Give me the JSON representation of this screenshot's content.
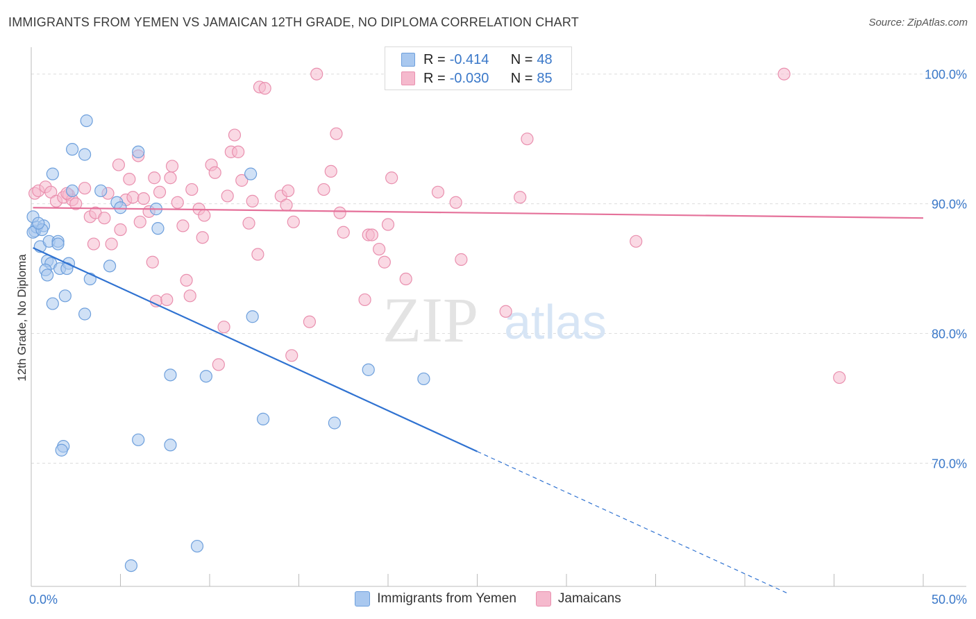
{
  "header": {
    "title": "IMMIGRANTS FROM YEMEN VS JAMAICAN 12TH GRADE, NO DIPLOMA CORRELATION CHART",
    "source": "Source: ZipAtlas.com"
  },
  "watermark": {
    "zip": "ZIP",
    "atlas": "atlas"
  },
  "stats": [
    {
      "r_label": "R =",
      "r": "-0.414",
      "n_label": "N =",
      "n": "48"
    },
    {
      "r_label": "R =",
      "r": "-0.030",
      "n_label": "N =",
      "n": "85"
    }
  ],
  "colors": {
    "blue_fill": "#a9c8ef",
    "blue_stroke": "#6d9fdc",
    "blue_line": "#2f72d1",
    "pink_fill": "#f5b9cd",
    "pink_stroke": "#e98fae",
    "pink_line": "#e5719a",
    "tick_text": "#3a78c9",
    "grid": "#dddddd"
  },
  "chart_data": {
    "type": "scatter",
    "title": "IMMIGRANTS FROM YEMEN VS JAMAICAN 12TH GRADE, NO DIPLOMA CORRELATION CHART",
    "xlabel": "",
    "ylabel": "12th Grade, No Diploma",
    "xlim": [
      0,
      50
    ],
    "ylim": [
      60.5,
      102.5
    ],
    "x_tick_labels": [
      {
        "value": 0,
        "label": "0.0%"
      },
      {
        "value": 50,
        "label": "50.0%"
      }
    ],
    "y_tick_labels": [
      {
        "value": 100,
        "label": "100.0%"
      },
      {
        "value": 90,
        "label": "90.0%"
      },
      {
        "value": 80,
        "label": "80.0%"
      },
      {
        "value": 70,
        "label": "70.0%"
      }
    ],
    "x_minor_ticks": [
      5,
      10,
      15,
      20,
      25,
      30,
      35,
      40,
      45,
      50
    ],
    "y_grid": [
      100,
      90,
      80,
      70
    ],
    "grid": true,
    "legend_position": "bottom-center",
    "series": [
      {
        "name": "Immigrants from Yemen",
        "color": "blue",
        "r": -0.414,
        "n": 48,
        "trend": {
          "x0": 0.1,
          "y0": 86.6,
          "x1": 25.0,
          "y1": 70.9,
          "dash_to_x": 42.5,
          "dash_to_y": 59.9
        },
        "points": [
          [
            0.1,
            89.0
          ],
          [
            0.2,
            87.9
          ],
          [
            0.3,
            88.2
          ],
          [
            0.7,
            88.3
          ],
          [
            0.5,
            86.7
          ],
          [
            1.0,
            87.1
          ],
          [
            1.5,
            87.1
          ],
          [
            0.9,
            85.6
          ],
          [
            1.1,
            85.4
          ],
          [
            0.8,
            84.9
          ],
          [
            1.6,
            85.0
          ],
          [
            2.1,
            85.4
          ],
          [
            0.9,
            84.5
          ],
          [
            1.2,
            82.3
          ],
          [
            1.9,
            82.9
          ],
          [
            1.2,
            92.3
          ],
          [
            2.3,
            94.2
          ],
          [
            3.0,
            93.8
          ],
          [
            3.1,
            96.4
          ],
          [
            2.3,
            91.0
          ],
          [
            3.9,
            91.0
          ],
          [
            4.8,
            90.1
          ],
          [
            5.0,
            89.7
          ],
          [
            7.0,
            89.6
          ],
          [
            7.1,
            88.1
          ],
          [
            6.0,
            94.0
          ],
          [
            4.4,
            85.2
          ],
          [
            3.3,
            84.2
          ],
          [
            3.0,
            81.5
          ],
          [
            12.3,
            92.3
          ],
          [
            12.4,
            81.3
          ],
          [
            7.8,
            76.8
          ],
          [
            9.8,
            76.7
          ],
          [
            18.9,
            77.2
          ],
          [
            22.0,
            76.5
          ],
          [
            13.0,
            73.4
          ],
          [
            17.0,
            73.1
          ],
          [
            6.0,
            71.8
          ],
          [
            7.8,
            71.4
          ],
          [
            1.8,
            71.3
          ],
          [
            1.7,
            71.0
          ],
          [
            9.3,
            63.6
          ],
          [
            5.6,
            62.1
          ],
          [
            0.1,
            87.8
          ],
          [
            1.5,
            86.9
          ],
          [
            2.0,
            85.0
          ],
          [
            0.6,
            88.0
          ],
          [
            0.4,
            88.5
          ]
        ]
      },
      {
        "name": "Jamaicans",
        "color": "pink",
        "r": -0.03,
        "n": 85,
        "trend": {
          "x0": 0.1,
          "y0": 89.7,
          "x1": 50.0,
          "y1": 88.9
        },
        "points": [
          [
            0.2,
            90.8
          ],
          [
            0.4,
            91.0
          ],
          [
            0.8,
            91.3
          ],
          [
            1.1,
            90.9
          ],
          [
            1.4,
            90.2
          ],
          [
            1.8,
            90.5
          ],
          [
            2.1,
            90.7
          ],
          [
            2.3,
            90.3
          ],
          [
            2.5,
            90.0
          ],
          [
            3.0,
            91.2
          ],
          [
            3.3,
            89.0
          ],
          [
            3.6,
            89.3
          ],
          [
            4.1,
            88.9
          ],
          [
            4.3,
            90.8
          ],
          [
            4.5,
            86.9
          ],
          [
            4.9,
            93.0
          ],
          [
            5.3,
            90.3
          ],
          [
            5.5,
            91.9
          ],
          [
            5.7,
            90.5
          ],
          [
            6.0,
            93.7
          ],
          [
            6.1,
            88.6
          ],
          [
            6.3,
            90.4
          ],
          [
            6.6,
            89.4
          ],
          [
            6.8,
            85.5
          ],
          [
            7.0,
            82.5
          ],
          [
            7.2,
            90.9
          ],
          [
            7.6,
            82.6
          ],
          [
            7.8,
            92.0
          ],
          [
            7.9,
            92.9
          ],
          [
            8.2,
            90.1
          ],
          [
            8.5,
            88.3
          ],
          [
            8.7,
            84.1
          ],
          [
            8.9,
            82.9
          ],
          [
            9.0,
            91.1
          ],
          [
            9.4,
            89.6
          ],
          [
            9.6,
            87.4
          ],
          [
            9.7,
            89.1
          ],
          [
            10.1,
            93.0
          ],
          [
            10.3,
            92.4
          ],
          [
            10.5,
            77.6
          ],
          [
            10.8,
            80.5
          ],
          [
            11.0,
            90.6
          ],
          [
            11.2,
            94.0
          ],
          [
            11.4,
            95.3
          ],
          [
            11.6,
            94.0
          ],
          [
            12.4,
            90.2
          ],
          [
            12.7,
            86.1
          ],
          [
            12.8,
            99.0
          ],
          [
            13.1,
            98.9
          ],
          [
            14.0,
            90.6
          ],
          [
            14.3,
            89.9
          ],
          [
            14.6,
            78.3
          ],
          [
            14.7,
            88.6
          ],
          [
            15.6,
            80.9
          ],
          [
            16.0,
            100.0
          ],
          [
            16.4,
            91.1
          ],
          [
            17.1,
            95.4
          ],
          [
            17.3,
            89.3
          ],
          [
            17.5,
            87.8
          ],
          [
            18.7,
            82.6
          ],
          [
            18.9,
            87.6
          ],
          [
            19.1,
            87.6
          ],
          [
            19.5,
            86.5
          ],
          [
            19.8,
            85.5
          ],
          [
            20.0,
            88.4
          ],
          [
            20.2,
            92.0
          ],
          [
            21.0,
            84.2
          ],
          [
            22.8,
            90.9
          ],
          [
            23.8,
            90.1
          ],
          [
            24.1,
            85.7
          ],
          [
            26.6,
            81.7
          ],
          [
            27.4,
            90.5
          ],
          [
            27.8,
            95.0
          ],
          [
            33.9,
            87.1
          ],
          [
            42.2,
            100.0
          ],
          [
            45.3,
            76.6
          ],
          [
            26.4,
            100.0
          ],
          [
            2.0,
            90.8
          ],
          [
            3.5,
            86.9
          ],
          [
            5.0,
            88.0
          ],
          [
            6.9,
            92.0
          ],
          [
            11.8,
            91.8
          ],
          [
            14.4,
            91.0
          ],
          [
            16.8,
            92.5
          ],
          [
            12.2,
            88.5
          ]
        ]
      }
    ]
  }
}
